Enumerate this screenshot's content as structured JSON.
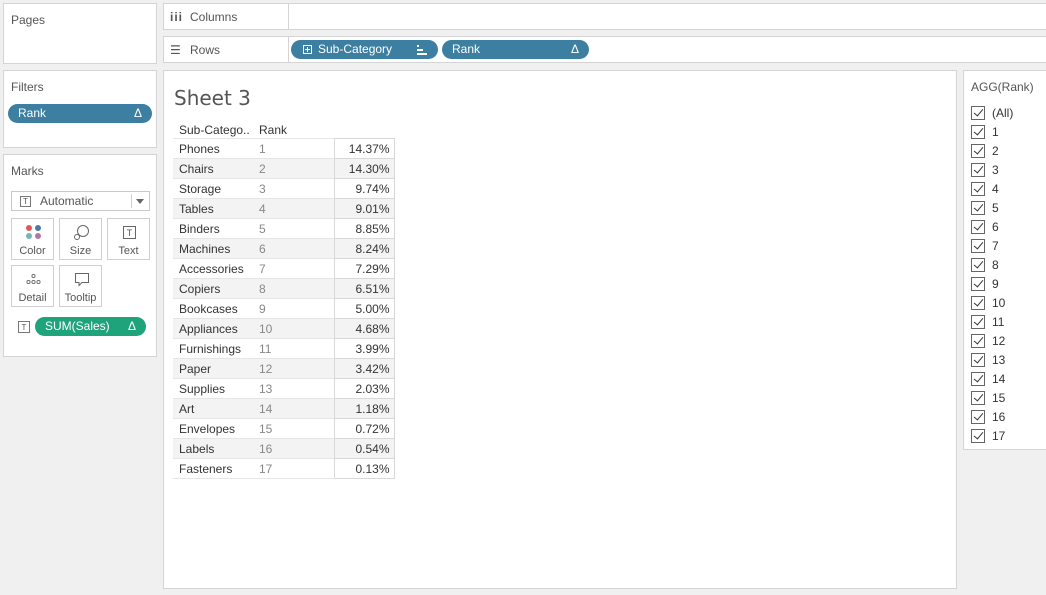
{
  "pages": {
    "title": "Pages"
  },
  "filters": {
    "title": "Filters",
    "pill": "Rank",
    "pill_delta": "Δ"
  },
  "marks": {
    "title": "Marks",
    "mark_type": "Automatic",
    "buttons": [
      "Color",
      "Size",
      "Text",
      "Detail",
      "Tooltip"
    ],
    "measure_pill": "SUM(Sales)",
    "measure_delta": "Δ"
  },
  "shelves": {
    "columns_label": "Columns",
    "rows_label": "Rows",
    "rows_pills": [
      {
        "label": "Sub-Category"
      },
      {
        "label": "Rank",
        "delta": "Δ"
      }
    ]
  },
  "sheet": {
    "title": "Sheet 3",
    "headers": [
      "Sub-Catego..",
      "Rank"
    ],
    "rows": [
      {
        "sub": "Phones",
        "rank": "1",
        "pct": "14.37%"
      },
      {
        "sub": "Chairs",
        "rank": "2",
        "pct": "14.30%"
      },
      {
        "sub": "Storage",
        "rank": "3",
        "pct": "9.74%"
      },
      {
        "sub": "Tables",
        "rank": "4",
        "pct": "9.01%"
      },
      {
        "sub": "Binders",
        "rank": "5",
        "pct": "8.85%"
      },
      {
        "sub": "Machines",
        "rank": "6",
        "pct": "8.24%"
      },
      {
        "sub": "Accessories",
        "rank": "7",
        "pct": "7.29%"
      },
      {
        "sub": "Copiers",
        "rank": "8",
        "pct": "6.51%"
      },
      {
        "sub": "Bookcases",
        "rank": "9",
        "pct": "5.00%"
      },
      {
        "sub": "Appliances",
        "rank": "10",
        "pct": "4.68%"
      },
      {
        "sub": "Furnishings",
        "rank": "11",
        "pct": "3.99%"
      },
      {
        "sub": "Paper",
        "rank": "12",
        "pct": "3.42%"
      },
      {
        "sub": "Supplies",
        "rank": "13",
        "pct": "2.03%"
      },
      {
        "sub": "Art",
        "rank": "14",
        "pct": "1.18%"
      },
      {
        "sub": "Envelopes",
        "rank": "15",
        "pct": "0.72%"
      },
      {
        "sub": "Labels",
        "rank": "16",
        "pct": "0.54%"
      },
      {
        "sub": "Fasteners",
        "rank": "17",
        "pct": "0.13%"
      }
    ]
  },
  "filter_card": {
    "title": "AGG(Rank)",
    "items": [
      "(All)",
      "1",
      "2",
      "3",
      "4",
      "5",
      "6",
      "7",
      "8",
      "9",
      "10",
      "11",
      "12",
      "13",
      "14",
      "15",
      "16",
      "17"
    ]
  },
  "colors": {
    "pill_blue": "#3d7fa1",
    "pill_green": "#1fa37a"
  }
}
